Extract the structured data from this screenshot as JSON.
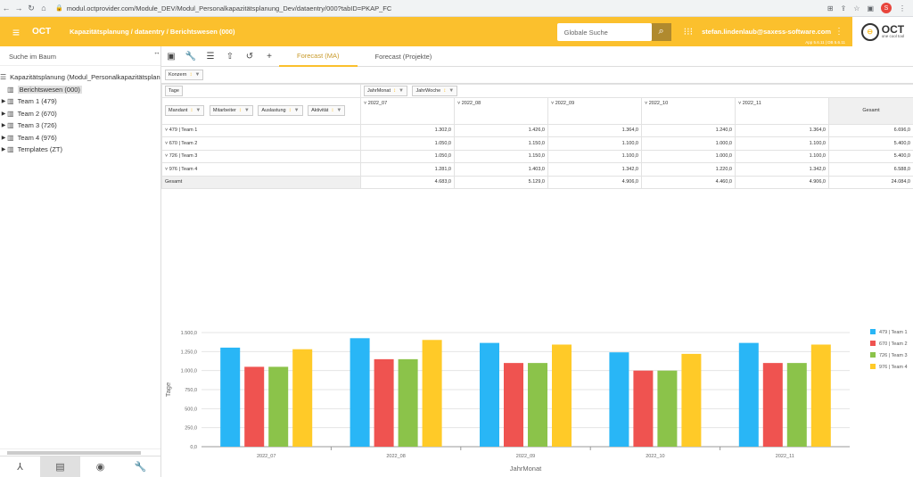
{
  "browser": {
    "url": "modul.octprovider.com/Module_DEV/Modul_Personalkapazitätsplanung_Dev/dataentry/000?tabID=PKAP_FC",
    "profile_initial": "S"
  },
  "header": {
    "app_name": "OCT",
    "breadcrumb": "Kapazitätsplanung / dataentry / Berichtswesen (000)",
    "search_placeholder": "Globale Suche",
    "user": "stefan.lindenlaub@saxess-software.com",
    "version": "App 5.6.11 | DB 5.6.11",
    "logo_text": "OCT",
    "logo_sub": "one cool tool",
    "accent": "#fbc02d"
  },
  "sidebar": {
    "search_label": "Suche im Baum",
    "root": "Kapazitätsplanung (Modul_Personalkapazitätsplanung_Dev)",
    "items": [
      {
        "label": "Berichtswesen (000)",
        "selected": true
      },
      {
        "label": "Team 1 (479)"
      },
      {
        "label": "Team 2 (670)"
      },
      {
        "label": "Team 3 (726)"
      },
      {
        "label": "Team 4 (976)"
      },
      {
        "label": "Templates (ZT)"
      }
    ]
  },
  "tabs": [
    "Forecast (MA)",
    "Forecast (Projekte)"
  ],
  "pivot": {
    "filter_chip": "Konzern",
    "value_chip": "Tage",
    "col_chips": [
      "JahrMonat",
      "JahrWoche"
    ],
    "row_chips": [
      "Mandant",
      "Mitarbeiter",
      "Auslastung",
      "Aktivität"
    ],
    "columns": [
      "2022_07",
      "2022_08",
      "2022_09",
      "2022_10",
      "2022_11"
    ],
    "total_label": "Gesamt",
    "rows": [
      {
        "label": "479 | Team 1",
        "values": [
          "1.302,0",
          "1.426,0",
          "1.364,0",
          "1.240,0",
          "1.364,0"
        ],
        "total": "6.696,0"
      },
      {
        "label": "670 | Team 2",
        "values": [
          "1.050,0",
          "1.150,0",
          "1.100,0",
          "1.000,0",
          "1.100,0"
        ],
        "total": "5.400,0"
      },
      {
        "label": "726 | Team 3",
        "values": [
          "1.050,0",
          "1.150,0",
          "1.100,0",
          "1.000,0",
          "1.100,0"
        ],
        "total": "5.400,0"
      },
      {
        "label": "976 | Team 4",
        "values": [
          "1.281,0",
          "1.403,0",
          "1.342,0",
          "1.220,0",
          "1.342,0"
        ],
        "total": "6.588,0"
      }
    ],
    "grand_total": {
      "label": "Gesamt",
      "values": [
        "4.683,0",
        "5.129,0",
        "4.906,0",
        "4.460,0",
        "4.906,0"
      ],
      "total": "24.084,0"
    }
  },
  "chart_data": {
    "type": "bar",
    "categories": [
      "2022_07",
      "2022_08",
      "2022_09",
      "2022_10",
      "2022_11"
    ],
    "series": [
      {
        "name": "479 | Team 1",
        "color": "#29b6f6",
        "values": [
          1302,
          1426,
          1364,
          1240,
          1364
        ]
      },
      {
        "name": "670 | Team 2",
        "color": "#ef5350",
        "values": [
          1050,
          1150,
          1100,
          1000,
          1100
        ]
      },
      {
        "name": "726 | Team 3",
        "color": "#8bc34a",
        "values": [
          1050,
          1150,
          1100,
          1000,
          1100
        ]
      },
      {
        "name": "976 | Team 4",
        "color": "#ffca28",
        "values": [
          1281,
          1403,
          1342,
          1220,
          1342
        ]
      }
    ],
    "xlabel": "JahrMonat",
    "ylabel": "Tage",
    "ylim": [
      0,
      1500
    ],
    "yticks": [
      "0,0",
      "250,0",
      "500,0",
      "750,0",
      "1.000,0",
      "1.250,0",
      "1.500,0"
    ],
    "grid": true,
    "legend": "right"
  }
}
